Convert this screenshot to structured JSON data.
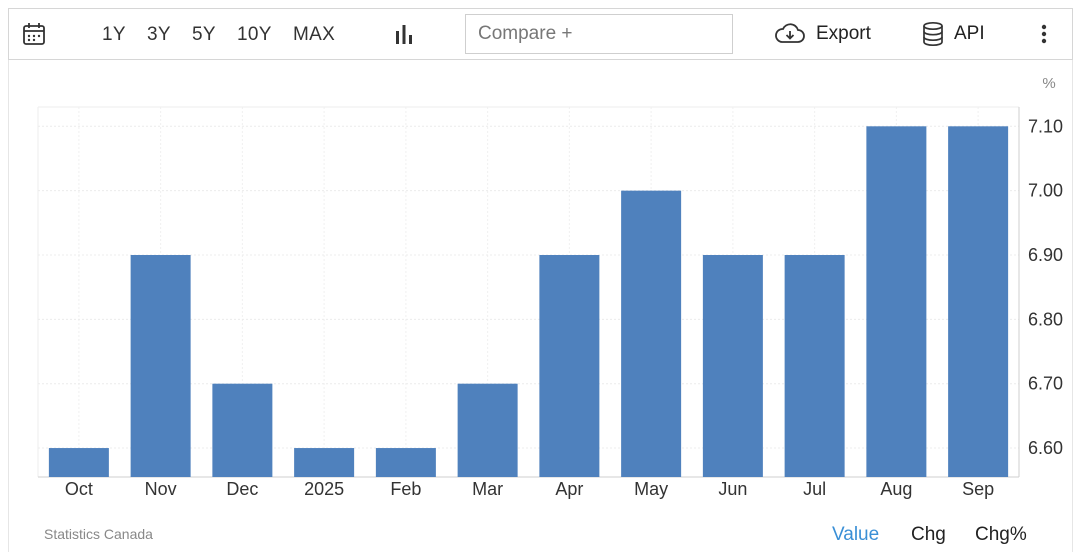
{
  "toolbar": {
    "ranges": [
      "1Y",
      "3Y",
      "5Y",
      "10Y",
      "MAX"
    ],
    "compare_placeholder": "Compare +",
    "export_label": "Export",
    "api_label": "API"
  },
  "icons": {
    "calendar": "calendar-icon",
    "chart_type": "bar-chart-icon",
    "export": "cloud-download-icon",
    "api": "database-icon",
    "more": "more-vertical-icon"
  },
  "colors": {
    "bar": "#4f81bd",
    "active_mode": "#3a8fd6"
  },
  "chart_data": {
    "type": "bar",
    "categories": [
      "Oct",
      "Nov",
      "Dec",
      "2025",
      "Feb",
      "Mar",
      "Apr",
      "May",
      "Jun",
      "Jul",
      "Aug",
      "Sep"
    ],
    "values": [
      6.6,
      6.9,
      6.7,
      6.6,
      6.6,
      6.7,
      6.9,
      7.0,
      6.9,
      6.9,
      7.1,
      7.1
    ],
    "unit": "%",
    "yticks": [
      "6.60",
      "6.70",
      "6.80",
      "6.90",
      "7.00",
      "7.10"
    ],
    "ylim": [
      6.555,
      7.13
    ],
    "y_axis_side": "right",
    "grid": true
  },
  "footer": {
    "source": "Statistics Canada",
    "modes": [
      "Value",
      "Chg",
      "Chg%"
    ],
    "active_mode": "Value"
  }
}
